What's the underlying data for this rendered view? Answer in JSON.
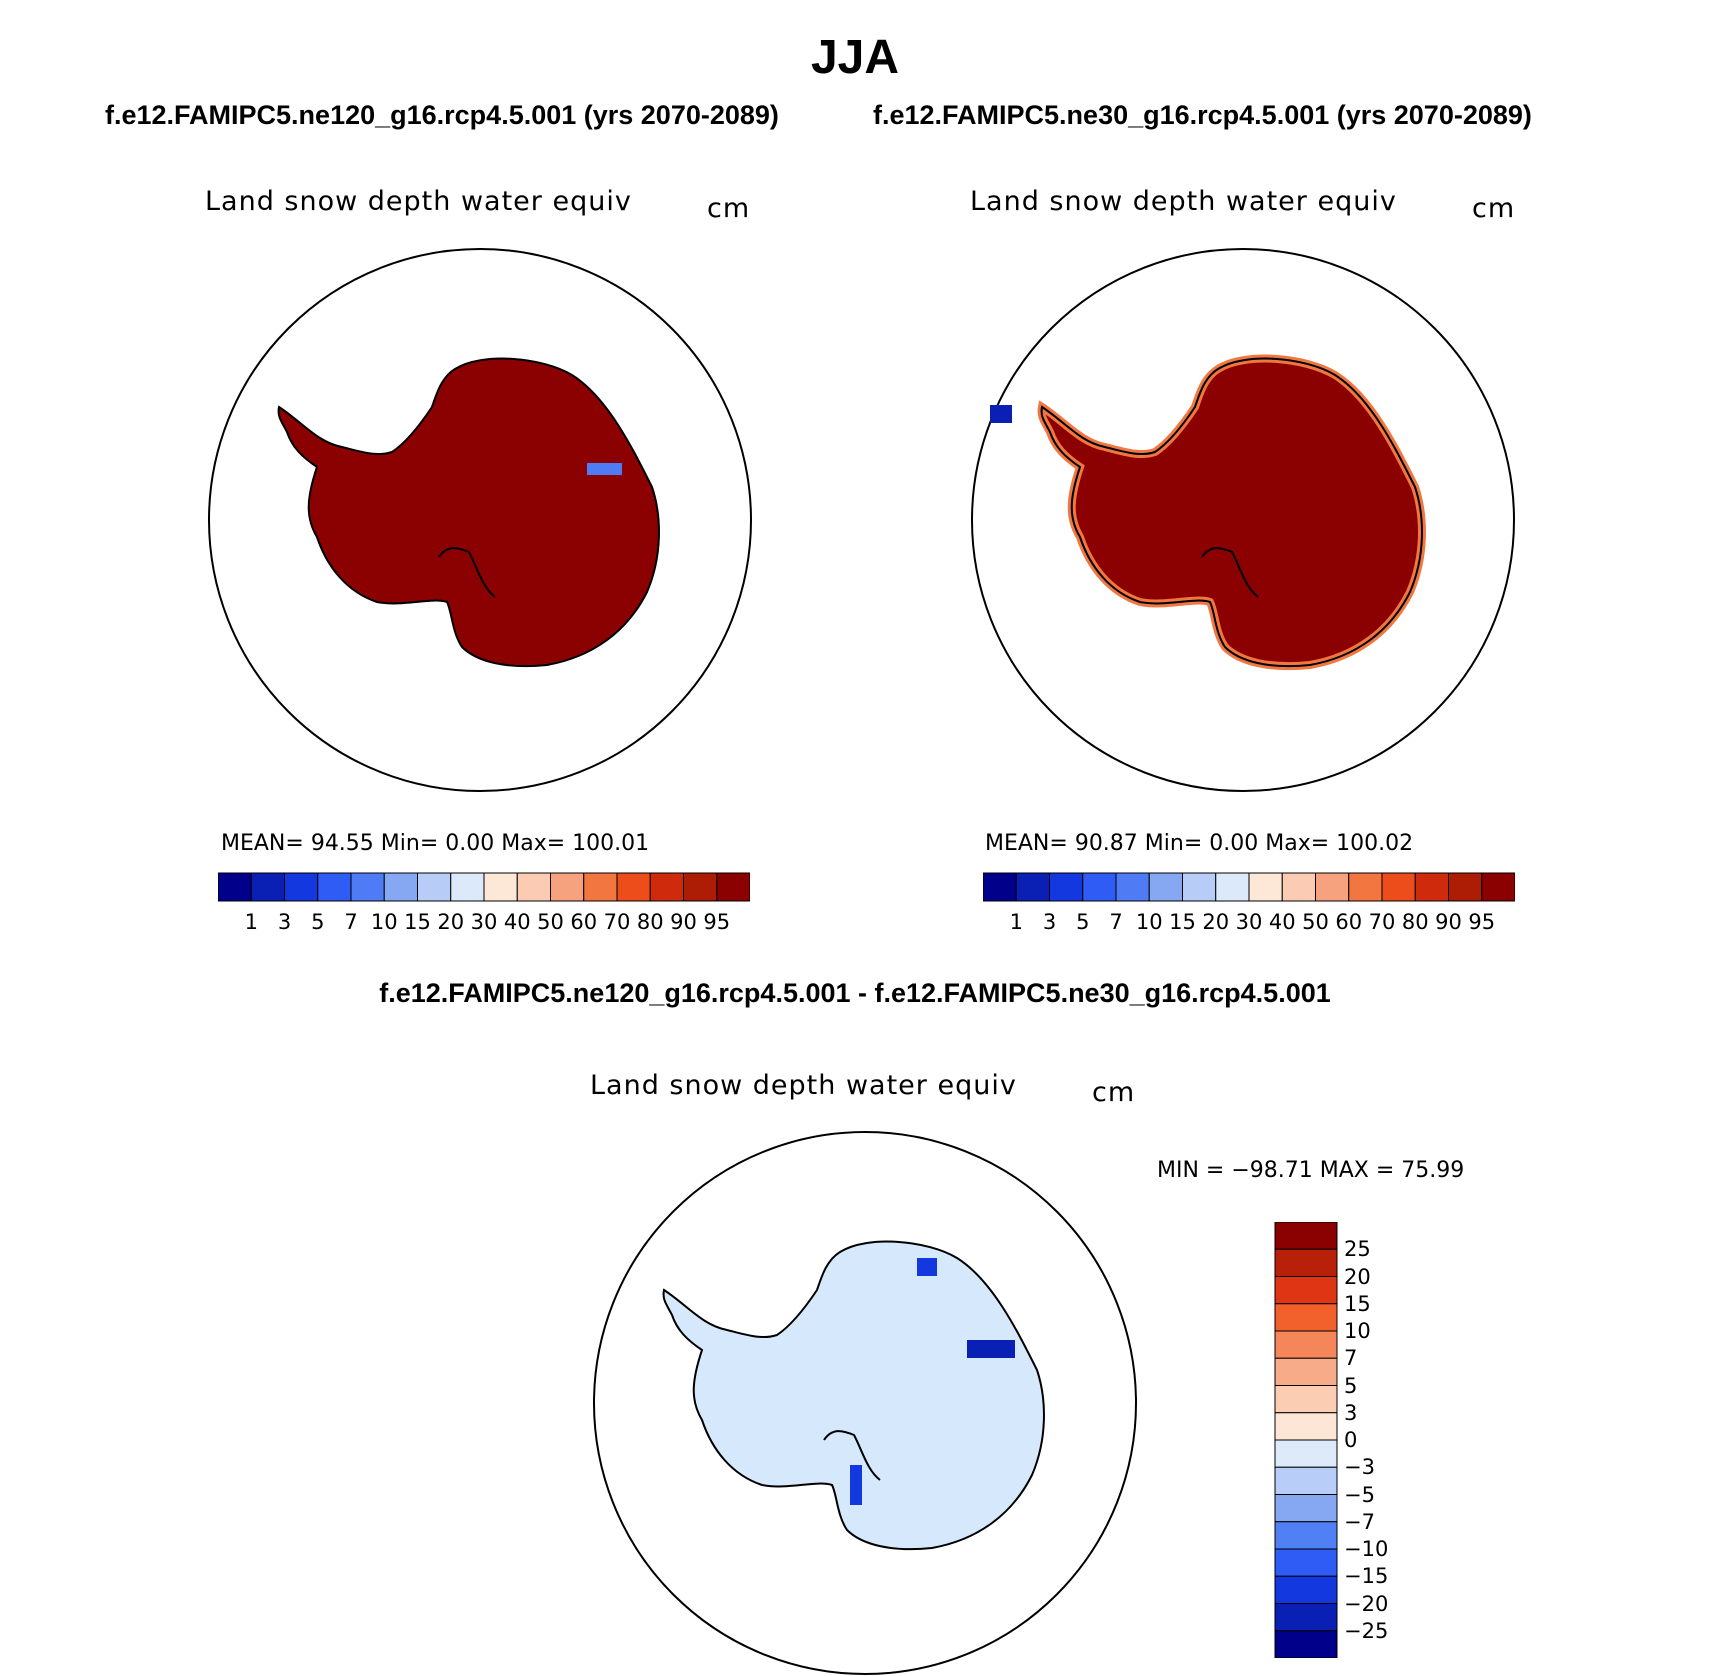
{
  "figure": {
    "season": "JJA",
    "left_case": "f.e12.FAMIPC5.ne120_g16.rcp4.5.001 (yrs 2070-2089)",
    "right_case": "f.e12.FAMIPC5.ne30_g16.rcp4.5.001 (yrs 2070-2089)",
    "diff_title": "f.e12.FAMIPC5.ne120_g16.rcp4.5.001 - f.e12.FAMIPC5.ne30_g16.rcp4.5.001"
  },
  "panels": {
    "left": {
      "variable": "Land snow depth water equiv",
      "units": "cm",
      "stats": "MEAN=   94.55   Min=     0.00   Max=  100.01",
      "fill_color": "#8b0000",
      "mean": 94.55,
      "min": 0.0,
      "max": 100.01
    },
    "right": {
      "variable": "Land snow depth water equiv",
      "units": "cm",
      "stats": "MEAN=   90.87   Min=     0.00   Max=  100.02",
      "fill_color": "#8b0000",
      "mean": 90.87,
      "min": 0.0,
      "max": 100.02
    },
    "diff": {
      "variable": "Land snow depth water equiv",
      "units": "cm",
      "stats": "MIN = −98.71  MAX =   75.99",
      "fill_color": "#d6e8fb",
      "min": -98.71,
      "max": 75.99
    }
  },
  "colorbar_main": {
    "levels": [
      "1",
      "3",
      "5",
      "7",
      "10",
      "15",
      "20",
      "30",
      "40",
      "50",
      "60",
      "70",
      "80",
      "90",
      "95"
    ],
    "colors": [
      "#00008b",
      "#0a1fb4",
      "#1438e0",
      "#2e5cf4",
      "#4f7cf5",
      "#86a8f3",
      "#b7ccf7",
      "#dce9fa",
      "#fde8d8",
      "#fbcbb4",
      "#f6a27f",
      "#f2763f",
      "#ec4d1a",
      "#cf2a0c",
      "#ad1d06",
      "#8b0000"
    ]
  },
  "colorbar_diff": {
    "levels": [
      "25",
      "20",
      "15",
      "10",
      "7",
      "5",
      "3",
      "0",
      "−3",
      "−5",
      "−7",
      "−10",
      "−15",
      "−20",
      "−25"
    ],
    "colors": [
      "#8b0000",
      "#b8200a",
      "#e03514",
      "#f2602c",
      "#f4865a",
      "#f8ab88",
      "#fbcdb3",
      "#fde6d6",
      "#dceafa",
      "#b8cef8",
      "#86a8f3",
      "#5180f5",
      "#2e5cf4",
      "#1438e0",
      "#0a1fb4",
      "#00008b"
    ]
  }
}
